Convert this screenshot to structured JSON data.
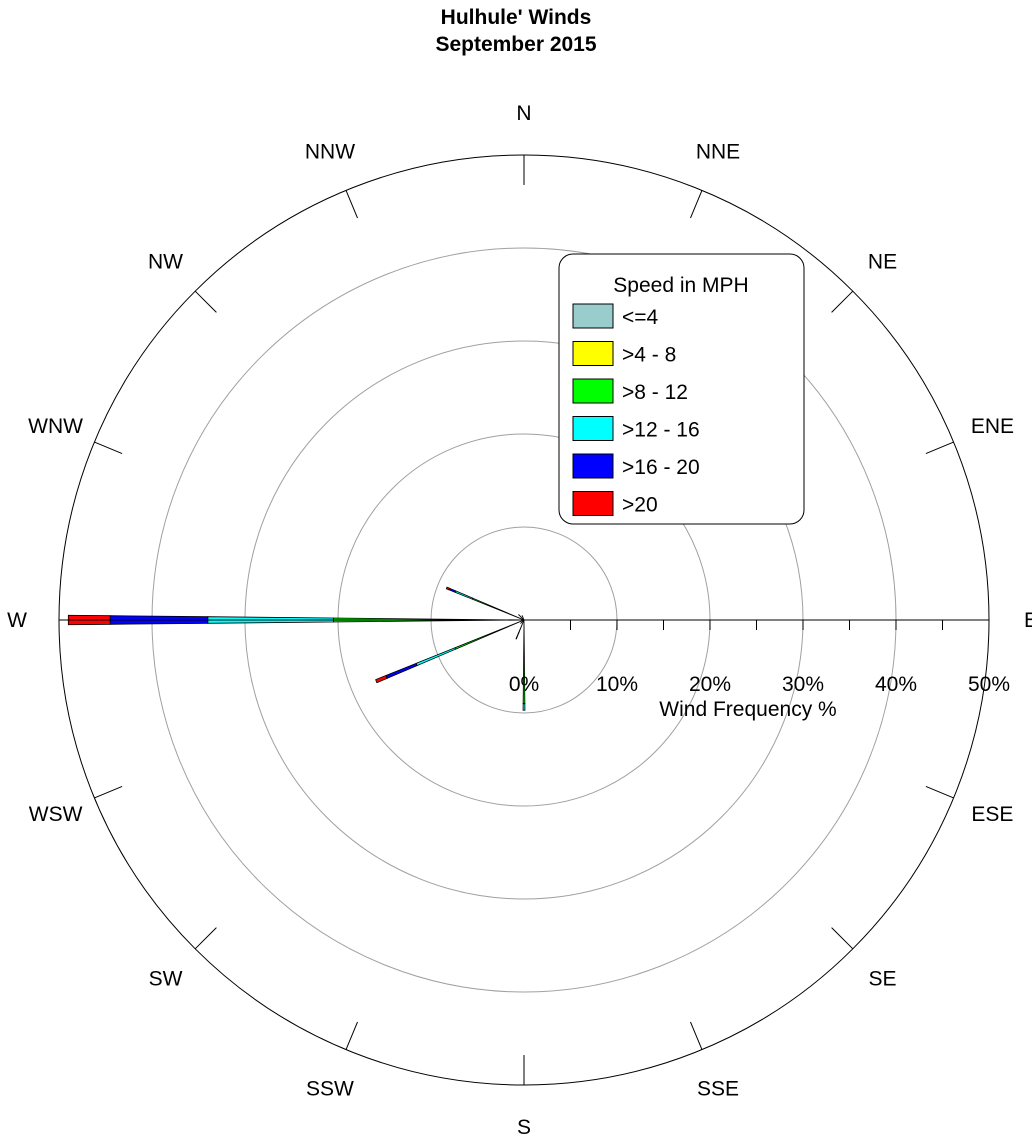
{
  "chart_data": {
    "type": "wind-rose",
    "title": "Hulhule' Winds",
    "subtitle": "September 2015",
    "radial_axis_label": "Wind Frequency %",
    "radial_ticks": [
      "0%",
      "10%",
      "20%",
      "30%",
      "40%",
      "50%"
    ],
    "radial_range": [
      0,
      50
    ],
    "grid": true,
    "legend_title": "Speed in MPH",
    "legend_position": "top-right",
    "directions": [
      "N",
      "NNE",
      "NE",
      "ENE",
      "E",
      "ESE",
      "SE",
      "SSE",
      "S",
      "SSW",
      "SW",
      "WSW",
      "W",
      "WNW",
      "NW",
      "NNW"
    ],
    "series": [
      {
        "name": "<=4",
        "color": "#99CCCC",
        "values": [
          0,
          0,
          0,
          0,
          0,
          0,
          0,
          0,
          0,
          0,
          0,
          0,
          0,
          0,
          0,
          0
        ]
      },
      {
        "name": ">4 - 8",
        "color": "#FFFF00",
        "values": [
          0,
          0,
          0,
          0,
          0,
          0,
          0,
          0,
          0,
          0,
          0,
          0,
          0.5,
          0,
          0,
          0
        ]
      },
      {
        "name": ">8 - 12",
        "color": "#00FF00",
        "values": [
          0,
          0,
          0,
          0,
          0,
          0,
          0,
          0,
          9,
          1.5,
          0.5,
          8,
          20,
          6,
          0.5,
          0.5
        ]
      },
      {
        "name": ">12 - 16",
        "color": "#00FFFF",
        "values": [
          0,
          0,
          0,
          0,
          0,
          0,
          0,
          0,
          0.7,
          0.5,
          0,
          4.5,
          13.5,
          2,
          0,
          0
        ]
      },
      {
        "name": ">16 - 20",
        "color": "#0000FF",
        "values": [
          0,
          0,
          0,
          0,
          0,
          0,
          0,
          0,
          0,
          0.2,
          0,
          3.5,
          10.5,
          0.7,
          0.3,
          0
        ]
      },
      {
        "name": ">20",
        "color": "#FF0000",
        "values": [
          0,
          0,
          0,
          0,
          0,
          0,
          0,
          0,
          0,
          0,
          0,
          1.2,
          4.5,
          0.3,
          0,
          0
        ]
      }
    ]
  }
}
